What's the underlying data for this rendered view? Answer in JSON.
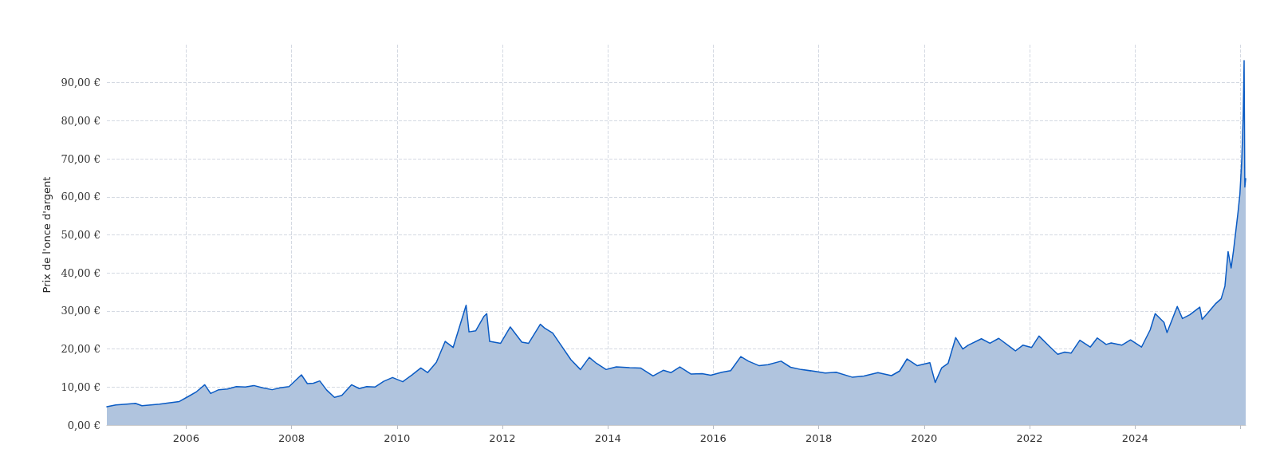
{
  "chart_data": {
    "type": "area",
    "ylabel": "Prix de l'once d'argent",
    "x": [
      "2004-07-01",
      "2004-09-01",
      "2004-11-15",
      "2005-01-15",
      "2005-03-01",
      "2005-05-01",
      "2005-07-01",
      "2005-09-01",
      "2005-11-15",
      "2006-01-15",
      "2006-03-15",
      "2006-05-10",
      "2006-06-20",
      "2006-08-15",
      "2006-10-15",
      "2006-12-15",
      "2007-02-15",
      "2007-04-15",
      "2007-06-15",
      "2007-08-20",
      "2007-10-15",
      "2007-12-15",
      "2008-03-10",
      "2008-04-20",
      "2008-06-01",
      "2008-07-15",
      "2008-09-01",
      "2008-10-25",
      "2008-12-15",
      "2009-02-20",
      "2009-04-15",
      "2009-06-05",
      "2009-08-01",
      "2009-10-01",
      "2009-12-01",
      "2010-02-10",
      "2010-04-15",
      "2010-06-15",
      "2010-08-01",
      "2010-10-01",
      "2010-12-01",
      "2011-01-25",
      "2011-04-25",
      "2011-05-15",
      "2011-07-01",
      "2011-08-25",
      "2011-09-15",
      "2011-10-05",
      "2011-12-20",
      "2012-02-25",
      "2012-05-15",
      "2012-07-01",
      "2012-09-20",
      "2012-10-20",
      "2012-12-15",
      "2013-02-01",
      "2013-04-20",
      "2013-06-25",
      "2013-08-25",
      "2013-10-15",
      "2013-12-20",
      "2014-03-01",
      "2014-06-01",
      "2014-08-15",
      "2014-11-10",
      "2015-01-20",
      "2015-03-15",
      "2015-05-15",
      "2015-08-01",
      "2015-10-15",
      "2015-12-15",
      "2016-03-01",
      "2016-05-01",
      "2016-07-10",
      "2016-09-01",
      "2016-11-15",
      "2017-01-15",
      "2017-04-15",
      "2017-06-20",
      "2017-09-01",
      "2017-12-10",
      "2018-02-15",
      "2018-05-01",
      "2018-08-20",
      "2018-11-10",
      "2019-02-15",
      "2019-05-20",
      "2019-07-15",
      "2019-09-05",
      "2019-11-15",
      "2020-02-10",
      "2020-03-18",
      "2020-05-01",
      "2020-06-15",
      "2020-08-07",
      "2020-09-25",
      "2020-11-01",
      "2021-02-01",
      "2021-04-01",
      "2021-06-01",
      "2021-09-25",
      "2021-11-15",
      "2022-01-15",
      "2022-03-07",
      "2022-05-15",
      "2022-07-15",
      "2022-09-01",
      "2022-10-15",
      "2022-12-15",
      "2023-02-25",
      "2023-04-15",
      "2023-06-15",
      "2023-07-20",
      "2023-10-01",
      "2023-12-01",
      "2024-02-15",
      "2024-04-15",
      "2024-05-20",
      "2024-07-20",
      "2024-08-10",
      "2024-10-20",
      "2024-11-25",
      "2025-01-15",
      "2025-03-25",
      "2025-04-10",
      "2025-05-20",
      "2025-07-15",
      "2025-08-20",
      "2025-09-15",
      "2025-10-07",
      "2025-10-28",
      "2025-11-14",
      "2025-12-15",
      "2025-12-28",
      "2026-01-10",
      "2026-01-20",
      "2026-01-26",
      "2026-01-31",
      "2026-02-06"
    ],
    "series": [
      {
        "color": "#0a5bc4",
        "values": [
          4.8,
          5.3,
          5.5,
          5.7,
          5.1,
          5.3,
          5.5,
          5.8,
          6.2,
          7.5,
          8.8,
          10.6,
          8.3,
          9.3,
          9.5,
          10.1,
          10.0,
          10.4,
          9.8,
          9.3,
          9.8,
          10.1,
          13.2,
          10.9,
          11.0,
          11.6,
          9.2,
          7.3,
          7.8,
          10.6,
          9.6,
          10.1,
          10.0,
          11.5,
          12.5,
          11.4,
          13.2,
          15.0,
          13.8,
          16.5,
          22.0,
          20.4,
          31.5,
          24.5,
          24.8,
          28.5,
          29.3,
          22.0,
          21.5,
          25.8,
          21.8,
          21.5,
          26.5,
          25.5,
          24.2,
          21.5,
          17.2,
          14.6,
          17.8,
          16.2,
          14.6,
          15.3,
          15.1,
          15.0,
          12.9,
          14.4,
          13.8,
          15.3,
          13.4,
          13.5,
          13.1,
          13.9,
          14.3,
          18.0,
          16.8,
          15.6,
          15.9,
          16.8,
          15.2,
          14.6,
          14.1,
          13.7,
          13.9,
          12.6,
          12.9,
          13.8,
          13.0,
          14.2,
          17.4,
          15.6,
          16.4,
          11.2,
          15.0,
          16.2,
          23.0,
          20.0,
          21.0,
          22.7,
          21.5,
          22.8,
          19.5,
          21.0,
          20.4,
          23.4,
          20.8,
          18.6,
          19.2,
          18.9,
          22.3,
          20.5,
          22.9,
          21.2,
          21.6,
          21.0,
          22.4,
          20.5,
          25.0,
          29.3,
          27.0,
          24.3,
          31.2,
          28.0,
          29.0,
          31.0,
          27.8,
          29.5,
          32.0,
          33.2,
          36.5,
          45.6,
          41.3,
          46.0,
          56.0,
          60.8,
          70.0,
          81.7,
          95.8,
          62.6,
          64.8
        ]
      }
    ],
    "xlim": [
      "2004-07-01",
      "2026-02-06"
    ],
    "xticks": [
      {
        "value": "2006",
        "label": "2006"
      },
      {
        "value": "2008",
        "label": "2008"
      },
      {
        "value": "2010",
        "label": "2010"
      },
      {
        "value": "2012",
        "label": "2012"
      },
      {
        "value": "2014",
        "label": "2014"
      },
      {
        "value": "2016",
        "label": "2016"
      },
      {
        "value": "2018",
        "label": "2018"
      },
      {
        "value": "2020",
        "label": "2020"
      },
      {
        "value": "2022",
        "label": "2022"
      },
      {
        "value": "2024",
        "label": "2024"
      },
      {
        "value": "2026",
        "label": null
      }
    ],
    "ylim": [
      0,
      100
    ],
    "yticks": [
      {
        "value": 0,
        "label": "0,00 €"
      },
      {
        "value": 10,
        "label": "10,00 €"
      },
      {
        "value": 20,
        "label": "20,00 €"
      },
      {
        "value": 30,
        "label": "30,00 €"
      },
      {
        "value": 40,
        "label": "40,00 €"
      },
      {
        "value": 50,
        "label": "50,00 €"
      },
      {
        "value": 60,
        "label": "60,00 €"
      },
      {
        "value": 70,
        "label": "70,00 €"
      },
      {
        "value": 80,
        "label": "80,00 €"
      },
      {
        "value": 90,
        "label": "90,00 €"
      }
    ],
    "grid": true,
    "marker": "none",
    "line_style": "solid"
  }
}
